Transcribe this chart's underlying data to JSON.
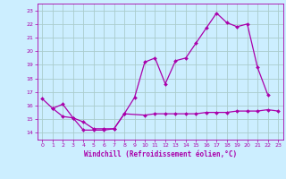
{
  "title": "Windchill (Refroidissement éolien,°C)",
  "background_color": "#cceeff",
  "grid_color": "#aacccc",
  "line_color": "#aa00aa",
  "xlim": [
    -0.5,
    23.5
  ],
  "ylim": [
    13.5,
    23.5
  ],
  "yticks": [
    14,
    15,
    16,
    17,
    18,
    19,
    20,
    21,
    22,
    23
  ],
  "xticks": [
    0,
    1,
    2,
    3,
    4,
    5,
    6,
    7,
    8,
    9,
    10,
    11,
    12,
    13,
    14,
    15,
    16,
    17,
    18,
    19,
    20,
    21,
    22,
    23
  ],
  "series1_x": [
    0,
    1,
    2,
    3,
    4,
    5,
    6,
    7,
    8,
    9,
    10,
    11,
    12,
    13,
    14,
    15,
    16,
    17,
    18,
    19,
    20,
    21,
    22
  ],
  "series1_y": [
    16.5,
    15.8,
    16.1,
    15.1,
    14.2,
    14.2,
    14.2,
    14.3,
    15.4,
    16.6,
    19.2,
    19.5,
    17.6,
    19.3,
    19.5,
    20.6,
    21.7,
    22.8,
    22.1,
    21.8,
    22.0,
    18.8,
    16.8
  ],
  "series2_x": [
    1,
    2,
    3,
    4,
    5,
    6,
    7,
    8,
    10,
    11,
    12,
    13,
    14,
    15,
    16,
    17,
    18,
    19,
    20,
    21,
    22,
    23
  ],
  "series2_y": [
    15.8,
    15.2,
    15.1,
    14.8,
    14.3,
    14.3,
    14.3,
    15.4,
    15.3,
    15.4,
    15.4,
    15.4,
    15.4,
    15.4,
    15.5,
    15.5,
    15.5,
    15.6,
    15.6,
    15.6,
    15.7,
    15.6
  ]
}
